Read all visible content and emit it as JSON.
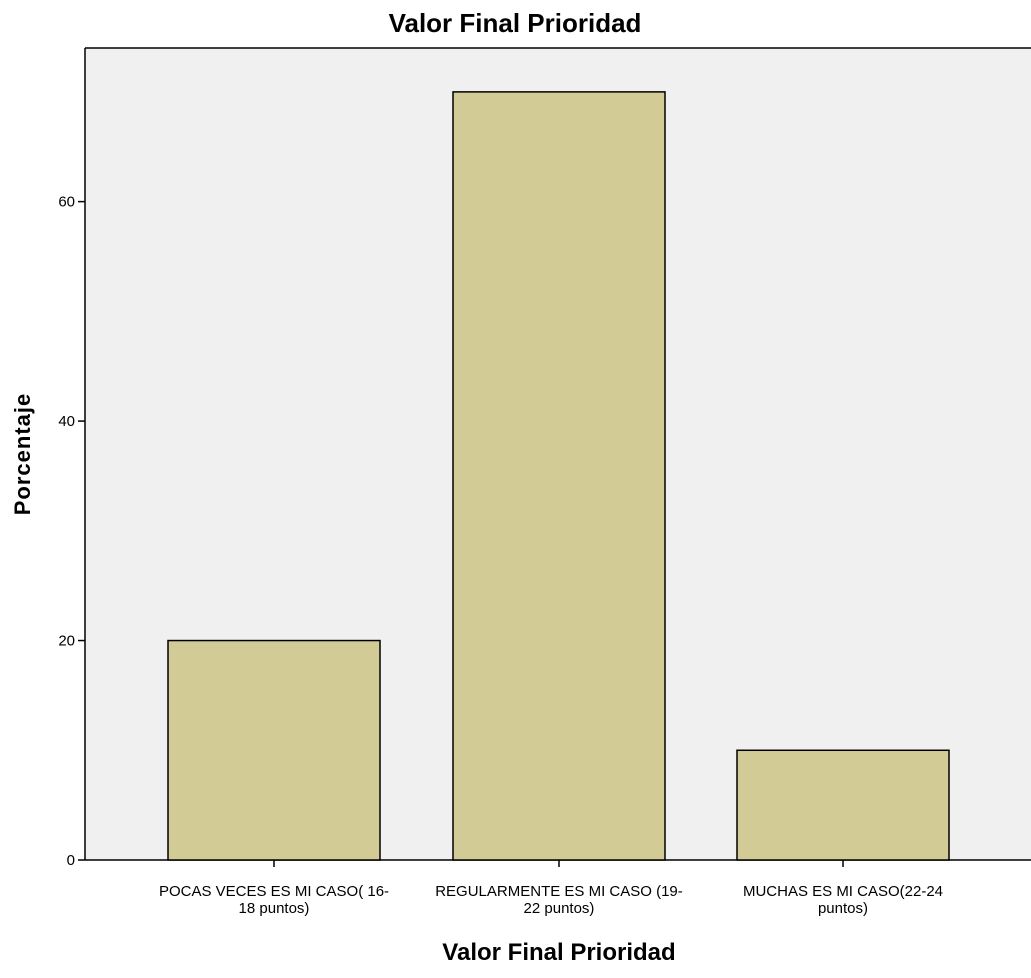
{
  "chart_data": {
    "type": "bar",
    "title": "Valor Final Prioridad",
    "xlabel": "Valor Final Prioridad",
    "ylabel": "Porcentaje",
    "categories": [
      [
        "POCAS VECES ES MI CASO( 16-",
        "18 puntos)"
      ],
      [
        "REGULARMENTE ES MI CASO (19-",
        "22 puntos)"
      ],
      [
        "MUCHAS ES MI CASO(22-24",
        "puntos)"
      ]
    ],
    "values": [
      20,
      70,
      10
    ],
    "yticks": [
      0,
      20,
      40,
      60
    ],
    "ylim": [
      0,
      74
    ],
    "grid": false,
    "colors": {
      "bar_fill": "#d2cb96",
      "bar_stroke": "#000000",
      "plot_background": "#f0f0f0",
      "axis": "#000000"
    }
  }
}
